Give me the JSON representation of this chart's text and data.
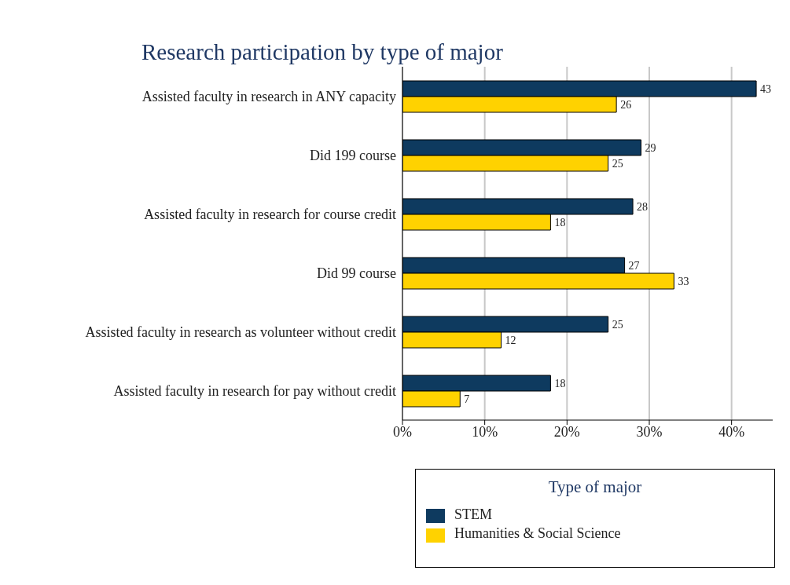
{
  "chart_data": {
    "type": "bar",
    "orientation": "horizontal",
    "title": "Research participation by type of major",
    "categories": [
      "Assisted faculty in research in ANY capacity",
      "Did 199 course",
      "Assisted faculty in research for course credit",
      "Did 99 course",
      "Assisted faculty in research as volunteer without credit",
      "Assisted faculty in research for pay without credit"
    ],
    "series": [
      {
        "name": "STEM",
        "color": "#0e3a5f",
        "values": [
          43,
          29,
          28,
          27,
          25,
          18
        ]
      },
      {
        "name": "Humanities & Social Science",
        "color": "#ffd200",
        "values": [
          26,
          25,
          18,
          33,
          12,
          7
        ]
      }
    ],
    "xlim": [
      0,
      45
    ],
    "xticks": [
      {
        "value": 0,
        "label": "0%"
      },
      {
        "value": 10,
        "label": "10%"
      },
      {
        "value": 20,
        "label": "20%"
      },
      {
        "value": 30,
        "label": "30%"
      },
      {
        "value": 40,
        "label": "40%"
      }
    ],
    "grid": "x",
    "data_labels": true,
    "legend": "bottom",
    "legend_title": "Type of major"
  }
}
